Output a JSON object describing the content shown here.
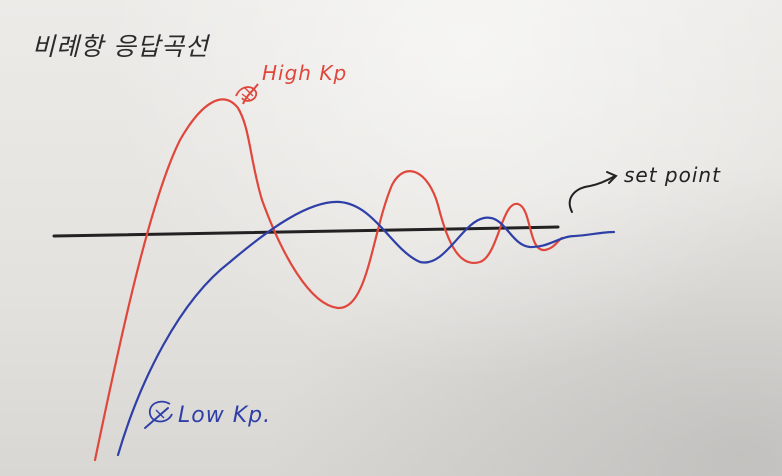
{
  "title": "비례항 응답곡선",
  "labels": {
    "high_kp": "High Kp",
    "low_kp": "Low Kp.",
    "set_point": "set point"
  },
  "colors": {
    "paper": "#e6e4e0",
    "ink_black": "#222222",
    "ink_red": "#e0473c",
    "ink_blue": "#2f3fa8"
  }
}
